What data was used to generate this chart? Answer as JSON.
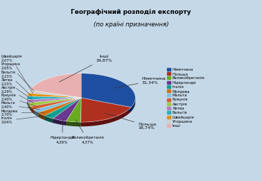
{
  "title_line1": "Географічний розподіл експорту",
  "title_line2": "(по країні призначення)",
  "labels": [
    "Німеччина",
    "Польща",
    "Великобританія",
    "Нідерланди",
    "Італія",
    "Молдова",
    "Мальта",
    "Румунія",
    "Австрія",
    "Литва",
    "Бельгія",
    "Швейцарія",
    "Угорщина",
    "Інші"
  ],
  "values": [
    31.34,
    18.74,
    4.37,
    4.26,
    3.04,
    2.7,
    2.4,
    2.4,
    2.29,
    2.23,
    2.23,
    2.07,
    2.05,
    19.87
  ],
  "colors": [
    "#1f4fa0",
    "#b03020",
    "#6aaa20",
    "#6a3890",
    "#10a090",
    "#d07010",
    "#80c0e0",
    "#d06030",
    "#a0c840",
    "#b080c0",
    "#20b0c0",
    "#e09010",
    "#d0d0d0",
    "#e8b0b0"
  ],
  "shadow_colors": [
    "#0a2050",
    "#601010",
    "#305010",
    "#301848",
    "#085040",
    "#683808",
    "#406878",
    "#683018",
    "#506420",
    "#584068",
    "#106068",
    "#704808",
    "#686868",
    "#906060"
  ],
  "legend_labels": [
    "Німеччина",
    "Польща",
    "Великобританія",
    "Нідерланди",
    "Італія",
    "Молдова",
    "Мальта",
    "Румунія",
    "Австрія",
    "Литва",
    "Бельгія",
    "Швейцарія",
    "Угорщина",
    "Інші"
  ],
  "background_color": "#c5d8e8",
  "startangle": 90,
  "left_labels": [
    {
      "name": "Швейцарія",
      "pct": "2,07%"
    },
    {
      "name": "Угорщина",
      "pct": "2,05%"
    },
    {
      "name": "Бельгія",
      "pct": "2,23%"
    },
    {
      "name": "Литва",
      "pct": "2,23%"
    },
    {
      "name": "Австрія",
      "pct": "2,29%"
    },
    {
      "name": "Румунія",
      "pct": "2,40%"
    },
    {
      "name": "Мальта",
      "pct": "2,40%"
    },
    {
      "name": "Молдова",
      "pct": "2,70%"
    },
    {
      "name": "Італія",
      "pct": "3,04%"
    },
    {
      "name": "Нідерланди",
      "pct": "4,26%"
    },
    {
      "name": "Великобританія",
      "pct": "4,37%"
    }
  ],
  "right_labels": [
    {
      "name": "Інші",
      "pct": "19,87%"
    },
    {
      "name": "Німеччина",
      "pct": "31,34%"
    },
    {
      "name": "Польща",
      "pct": "18,74%"
    }
  ]
}
